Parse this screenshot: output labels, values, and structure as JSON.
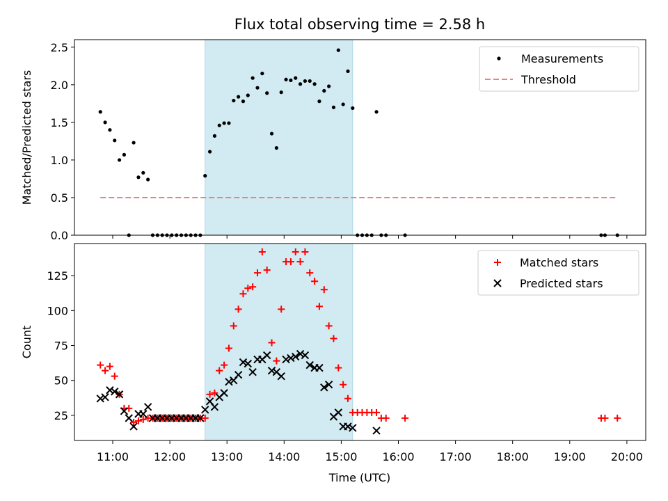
{
  "title": "Flux total observing time = 2.58 h",
  "xlabel": "Time (UTC)",
  "x_ticks": [
    "11:00",
    "12:00",
    "13:00",
    "14:00",
    "15:00",
    "16:00",
    "17:00",
    "18:00",
    "19:00",
    "20:00"
  ],
  "colors": {
    "shade": "#add8e6",
    "measurement": "#000000",
    "threshold": "#f08080",
    "matched": "#ff0000",
    "predicted": "#000000"
  },
  "chart_data": [
    {
      "type": "scatter",
      "ylabel": "Matched/Predicted stars",
      "ylim": [
        0,
        2.6
      ],
      "xlim": [
        10.33,
        20.33
      ],
      "y_ticks": [
        "0.0",
        "0.5",
        "1.0",
        "1.5",
        "2.0",
        "2.5"
      ],
      "shaded_interval": [
        "12:37",
        "15:12"
      ],
      "legend": {
        "position": "top-right",
        "entries": [
          "Measurements",
          "Threshold"
        ]
      },
      "threshold": {
        "value": 0.5,
        "x_range": [
          "10:47",
          "19:50"
        ]
      },
      "series": [
        {
          "name": "Measurements",
          "x": [
            "10:47",
            "10:52",
            "10:57",
            "11:02",
            "11:07",
            "11:12",
            "11:17",
            "11:22",
            "11:27",
            "11:32",
            "11:37",
            "11:42",
            "11:47",
            "11:52",
            "11:57",
            "12:02",
            "12:07",
            "12:12",
            "12:17",
            "12:22",
            "12:27",
            "12:32",
            "12:37",
            "12:42",
            "12:47",
            "12:52",
            "12:57",
            "13:02",
            "13:07",
            "13:12",
            "13:17",
            "13:22",
            "13:27",
            "13:32",
            "13:37",
            "13:42",
            "13:47",
            "13:52",
            "13:57",
            "14:02",
            "14:07",
            "14:12",
            "14:17",
            "14:22",
            "14:27",
            "14:32",
            "14:37",
            "14:42",
            "14:47",
            "14:52",
            "14:57",
            "15:02",
            "15:07",
            "15:12",
            "15:17",
            "15:22",
            "15:27",
            "15:32",
            "15:37",
            "15:42",
            "15:47",
            "16:07",
            "19:33",
            "19:37",
            "19:50"
          ],
          "y": [
            1.64,
            1.5,
            1.4,
            1.26,
            1.0,
            1.07,
            0.0,
            1.23,
            0.77,
            0.83,
            0.74,
            0.0,
            0.0,
            0.0,
            0.0,
            0.0,
            0.0,
            0.0,
            0.0,
            0.0,
            0.0,
            0.0,
            0.79,
            1.11,
            1.32,
            1.46,
            1.49,
            1.49,
            1.79,
            1.84,
            1.78,
            1.86,
            2.09,
            1.96,
            2.15,
            1.89,
            1.35,
            1.16,
            1.9,
            2.07,
            2.06,
            2.09,
            2.01,
            2.05,
            2.05,
            2.01,
            1.78,
            1.92,
            1.98,
            1.7,
            2.46,
            1.74,
            2.18,
            1.69,
            0.0,
            0.0,
            0.0,
            0.0,
            1.64,
            0.0,
            0.0,
            0.0,
            0.0,
            0.0,
            0.0
          ]
        }
      ]
    },
    {
      "type": "scatter",
      "ylabel": "Count",
      "ylim": [
        7,
        148
      ],
      "xlim": [
        10.33,
        20.33
      ],
      "y_ticks": [
        "25",
        "50",
        "75",
        "100",
        "125"
      ],
      "shaded_interval": [
        "12:37",
        "15:12"
      ],
      "legend": {
        "position": "top-right",
        "entries": [
          "Matched stars",
          "Predicted stars"
        ]
      },
      "series": [
        {
          "name": "Matched stars",
          "x": [
            "10:47",
            "10:52",
            "10:57",
            "11:02",
            "11:07",
            "11:12",
            "11:17",
            "11:22",
            "11:27",
            "11:32",
            "11:37",
            "11:42",
            "11:47",
            "11:52",
            "11:57",
            "12:02",
            "12:07",
            "12:12",
            "12:17",
            "12:22",
            "12:27",
            "12:32",
            "12:37",
            "12:42",
            "12:47",
            "12:52",
            "12:57",
            "13:02",
            "13:07",
            "13:12",
            "13:17",
            "13:22",
            "13:27",
            "13:32",
            "13:37",
            "13:42",
            "13:47",
            "13:52",
            "13:57",
            "14:02",
            "14:07",
            "14:12",
            "14:17",
            "14:22",
            "14:27",
            "14:32",
            "14:37",
            "14:42",
            "14:47",
            "14:52",
            "14:57",
            "15:02",
            "15:07",
            "15:12",
            "15:17",
            "15:22",
            "15:27",
            "15:32",
            "15:37",
            "15:42",
            "15:47",
            "16:07",
            "19:33",
            "19:37",
            "19:50"
          ],
          "y": [
            61,
            57,
            60,
            53,
            40,
            30,
            30,
            20,
            21,
            22,
            23,
            23,
            23,
            23,
            23,
            23,
            23,
            23,
            23,
            23,
            23,
            23,
            23,
            40,
            41,
            57,
            61,
            73,
            89,
            101,
            112,
            116,
            117,
            127,
            142,
            129,
            77,
            64,
            101,
            135,
            135,
            142,
            135,
            142,
            127,
            121,
            103,
            115,
            89,
            80,
            59,
            47,
            37,
            27,
            27,
            27,
            27,
            27,
            27,
            23,
            23,
            23,
            23,
            23,
            23
          ]
        },
        {
          "name": "Predicted stars",
          "x": [
            "10:47",
            "10:52",
            "10:57",
            "11:02",
            "11:07",
            "11:12",
            "11:17",
            "11:22",
            "11:27",
            "11:32",
            "11:37",
            "11:42",
            "11:47",
            "11:52",
            "11:57",
            "12:02",
            "12:07",
            "12:12",
            "12:17",
            "12:22",
            "12:27",
            "12:32",
            "12:37",
            "12:42",
            "12:47",
            "12:52",
            "12:57",
            "13:02",
            "13:07",
            "13:12",
            "13:17",
            "13:22",
            "13:27",
            "13:32",
            "13:37",
            "13:42",
            "13:47",
            "13:52",
            "13:57",
            "14:02",
            "14:07",
            "14:12",
            "14:17",
            "14:22",
            "14:27",
            "14:32",
            "14:37",
            "14:42",
            "14:47",
            "14:52",
            "14:57",
            "15:02",
            "15:07",
            "15:12",
            "15:37"
          ],
          "y": [
            37,
            38,
            43,
            42,
            40,
            28,
            23,
            17,
            26,
            26,
            31,
            23,
            23,
            23,
            23,
            23,
            23,
            23,
            23,
            23,
            23,
            23,
            29,
            35,
            31,
            38,
            41,
            49,
            50,
            54,
            63,
            62,
            56,
            65,
            65,
            68,
            57,
            56,
            53,
            65,
            66,
            67,
            69,
            68,
            61,
            59,
            59,
            45,
            47,
            24,
            27,
            17,
            17,
            16,
            14
          ]
        }
      ]
    }
  ]
}
